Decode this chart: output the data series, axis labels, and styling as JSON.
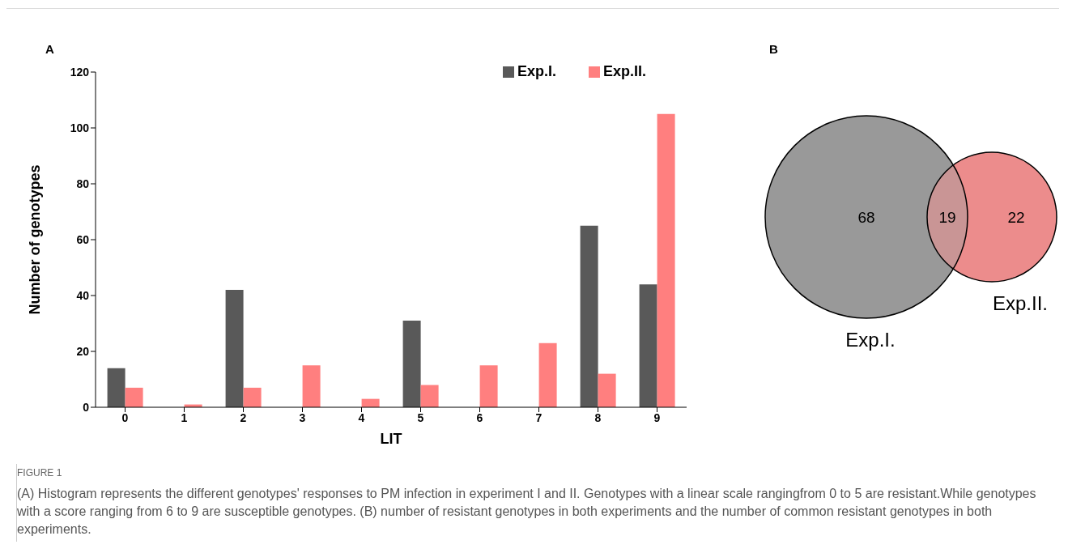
{
  "chart_data": [
    {
      "type": "bar",
      "title": "A",
      "xlabel": "LIT",
      "ylabel": "Number of genotypes",
      "categories": [
        "0",
        "1",
        "2",
        "3",
        "4",
        "5",
        "6",
        "7",
        "8",
        "9"
      ],
      "series": [
        {
          "name": "Exp.I.",
          "color": "#595959",
          "values": [
            14,
            0,
            42,
            0,
            0,
            31,
            0,
            0,
            65,
            44
          ]
        },
        {
          "name": "Exp.II.",
          "color": "#ff7f7f",
          "values": [
            7,
            1,
            7,
            15,
            3,
            8,
            15,
            23,
            12,
            105
          ]
        }
      ],
      "ylim": [
        0,
        120
      ],
      "yticks": [
        0,
        20,
        40,
        60,
        80,
        100,
        120
      ],
      "legend": "top right",
      "grid": false,
      "annotations": [
        "FIGURE 1",
        "(A) Histogram represents the different genotypes' responses to PM infection in experiment I and II. Genotypes with a linear scale rangingfrom 0 to 5 are resistant.While genotypes with a score ranging from 6 to 9 are susceptible genotypes. (B) number of resistant genotypes in both experiments and the number of common resistant genotypes in both experiments."
      ]
    },
    {
      "type": "other",
      "title": "B",
      "categories": [
        "Exp.I.",
        null,
        "Exp.II."
      ],
      "values": [
        68,
        19,
        22
      ],
      "data_labels": true,
      "colors": [
        "#999999",
        "#c99595",
        "#ec8c8c"
      ]
    }
  ]
}
